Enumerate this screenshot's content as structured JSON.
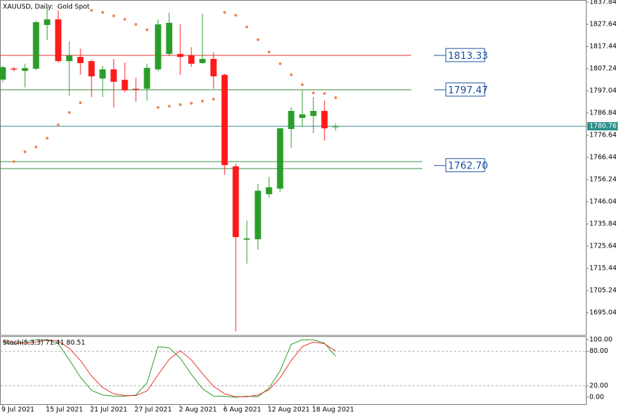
{
  "chart_data": [
    {
      "type": "candlestick",
      "title": "XAUUSD, Daily:  Gold Spot",
      "categories": [
        "9 Jul 2021",
        null,
        null,
        null,
        "15 Jul 2021",
        null,
        null,
        null,
        "21 Jul 2021",
        null,
        null,
        null,
        "27 Jul 2021",
        null,
        null,
        null,
        "2 Aug 2021",
        null,
        null,
        null,
        "6 Aug 2021",
        null,
        null,
        null,
        "12 Aug 2021",
        null,
        null,
        null,
        "18 Aug 2021",
        null,
        null
      ],
      "open": [
        1802.2,
        1807.3,
        1806.2,
        1807.2,
        1827.3,
        1829.9,
        1810.7,
        1812.6,
        1810.7,
        1802.7,
        1806.9,
        1802.1,
        1798.0,
        1798.0,
        1806.9,
        1814.0,
        1814.0,
        1813.3,
        1809.8,
        1811.7,
        1804.4,
        1762.3,
        1728.6,
        1728.8,
        1749.5,
        1752.1,
        1779.5,
        1784.6,
        1785.5,
        1787.8,
        1780.3
      ],
      "high": [
        1808.5,
        1808.0,
        1809.5,
        1829.2,
        1835.6,
        1834.0,
        1819.7,
        1816.5,
        1811.4,
        1808.5,
        1811.7,
        1810.1,
        1803.0,
        1809.5,
        1829.9,
        1833.0,
        1827.6,
        1817.1,
        1832.4,
        1814.8,
        1805.0,
        1763.6,
        1737.4,
        1754.3,
        1757.5,
        1780.0,
        1789.4,
        1797.3,
        1794.2,
        1792.6,
        1782.0
      ],
      "low": [
        1801.0,
        1806.0,
        1798.6,
        1806.5,
        1820.3,
        1810.0,
        1794.8,
        1804.4,
        1794.2,
        1794.2,
        1789.4,
        1796.4,
        1792.0,
        1792.6,
        1806.0,
        1813.0,
        1804.4,
        1808.0,
        1809.5,
        1798.0,
        1758.4,
        1686.4,
        1717.6,
        1724.0,
        1748.0,
        1750.5,
        1770.9,
        1780.5,
        1777.6,
        1774.1,
        1778.7
      ],
      "close": [
        1807.9,
        1806.8,
        1807.5,
        1828.6,
        1829.9,
        1810.7,
        1813.3,
        1809.8,
        1803.7,
        1806.9,
        1801.2,
        1797.3,
        1797.6,
        1807.6,
        1827.6,
        1828.3,
        1812.6,
        1809.5,
        1811.7,
        1803.7,
        1762.9,
        1729.8,
        1729.2,
        1751.1,
        1752.7,
        1779.8,
        1787.8,
        1786.2,
        1787.8,
        1779.8,
        1780.76
      ],
      "up_color": "#2a9d2a",
      "down_color": "#ff1a1a",
      "sar": {
        "color": "#f0885a",
        "values": [
          null,
          1764.5,
          1769.0,
          1771.2,
          1775.3,
          1781.4,
          1787.1,
          1791.6,
          1834.0,
          1833.1,
          1831.5,
          1829.9,
          1827.6,
          1825.1,
          1789.4,
          1790.0,
          1790.7,
          1791.3,
          1792.3,
          1793.2,
          1833.1,
          1831.8,
          1826.4,
          1820.6,
          1814.9,
          1809.5,
          1804.4,
          1799.9,
          1796.1,
          1795.8,
          1793.9
        ]
      },
      "levels": [
        {
          "value": 1813.33,
          "color": "#e8302c"
        },
        {
          "value": 1797.47,
          "color": "#3a8f3a"
        },
        {
          "value": 1762.7,
          "label": "1762.70",
          "color": "#3a8f3a",
          "band": [
            1764.5,
            1761.3
          ]
        }
      ],
      "price_line_color": "#2a8f8a",
      "ylim": [
        1684.84,
        1838.8
      ],
      "yticks": [
        1837.84,
        1827.64,
        1817.44,
        1807.24,
        1797.04,
        1786.84,
        1776.64,
        1766.44,
        1756.24,
        1746.04,
        1735.84,
        1725.64,
        1715.44,
        1705.24,
        1695.04
      ]
    },
    {
      "type": "line",
      "title": "Stoch(5,3,3)",
      "series": [
        {
          "color": "#2a9d2a",
          "values": [
            95,
            92,
            96,
            100,
            100,
            93,
            65,
            35,
            12,
            4,
            2,
            2,
            4,
            25,
            88,
            86,
            68,
            40,
            15,
            2,
            2,
            0,
            2,
            1,
            16,
            46,
            92,
            100,
            100,
            94,
            71.41
          ]
        },
        {
          "color": "#e8302c",
          "values": [
            98,
            95,
            94,
            96,
            99,
            98,
            85,
            64,
            37,
            17,
            6,
            3,
            3,
            11,
            39,
            66,
            81,
            65,
            41,
            19,
            6,
            1,
            1,
            4,
            13,
            34,
            64,
            88,
            96,
            93,
            80.51
          ]
        }
      ],
      "dashed_levels": [
        80,
        20
      ],
      "ylim": [
        -12,
        106
      ],
      "yticks": [
        {
          "value": 100,
          "label": "100.00"
        },
        {
          "value": 80,
          "label": "80.00"
        },
        {
          "value": 20,
          "label": "20.00"
        },
        {
          "value": 0,
          "label": "0.00"
        }
      ]
    }
  ]
}
